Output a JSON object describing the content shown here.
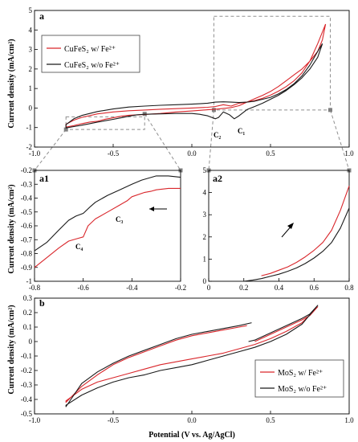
{
  "colors": {
    "with_fe": "#d9262b",
    "without_fe": "#1a1a1a",
    "guide": "#8f8f8f",
    "marker": "#808080"
  },
  "chart_data": [
    {
      "id": "a",
      "type": "line",
      "title": "a",
      "xlabel": "",
      "ylabel": "Current density (mA/cm²)",
      "xlim": [
        -1.0,
        1.0
      ],
      "ylim": [
        -2,
        5
      ],
      "xticks": [
        "-1.0",
        "-0.5",
        "0.0",
        "0.5",
        "1.0"
      ],
      "yticks": [
        "-2",
        "-1",
        "0",
        "1",
        "2",
        "3",
        "4",
        "5"
      ],
      "legend": {
        "position": "top-left"
      },
      "annotations": [
        "C₂",
        "C₁"
      ],
      "series": [
        {
          "name": "CuFeS₂ w/ Fe²⁺",
          "color": "#d9262b",
          "x": [
            0.85,
            0.83,
            0.8,
            0.75,
            0.7,
            0.65,
            0.6,
            0.55,
            0.5,
            0.45,
            0.4,
            0.35,
            0.3,
            0.25,
            0.2,
            0.15,
            0.1,
            0.05,
            0.0,
            -0.1,
            -0.2,
            -0.3,
            -0.35,
            -0.4,
            -0.45,
            -0.5,
            -0.55,
            -0.6,
            -0.65,
            -0.7,
            -0.75,
            -0.8,
            -0.8,
            -0.75,
            -0.7,
            -0.6,
            -0.5,
            -0.4,
            -0.3,
            -0.2,
            -0.1,
            0.0,
            0.05,
            0.1,
            0.15,
            0.2,
            0.25,
            0.3,
            0.35,
            0.4,
            0.45,
            0.5,
            0.55,
            0.6,
            0.65,
            0.7,
            0.75,
            0.8,
            0.83,
            0.85
          ],
          "y": [
            4.3,
            3.5,
            2.9,
            2.4,
            2.0,
            1.7,
            1.4,
            1.1,
            0.85,
            0.65,
            0.48,
            0.3,
            0.12,
            0.02,
            -0.02,
            -0.06,
            -0.09,
            -0.12,
            -0.15,
            -0.2,
            -0.28,
            -0.33,
            -0.35,
            -0.37,
            -0.42,
            -0.5,
            -0.57,
            -0.68,
            -0.72,
            -0.8,
            -0.9,
            -0.98,
            -0.83,
            -0.62,
            -0.48,
            -0.3,
            -0.2,
            -0.14,
            -0.1,
            -0.06,
            -0.03,
            0.0,
            0.02,
            0.04,
            0.08,
            0.17,
            0.1,
            0.25,
            0.3,
            0.38,
            0.5,
            0.66,
            0.86,
            1.1,
            1.4,
            1.8,
            2.4,
            3.3,
            3.9,
            4.3
          ]
        },
        {
          "name": "CuFeS₂ w/o Fe²⁺",
          "color": "#1a1a1a",
          "x": [
            0.83,
            0.8,
            0.75,
            0.7,
            0.65,
            0.6,
            0.55,
            0.5,
            0.45,
            0.4,
            0.35,
            0.3,
            0.27,
            0.24,
            0.2,
            0.17,
            0.15,
            0.1,
            0.05,
            0.0,
            -0.1,
            -0.2,
            -0.3,
            -0.35,
            -0.4,
            -0.45,
            -0.5,
            -0.55,
            -0.6,
            -0.65,
            -0.7,
            -0.75,
            -0.8,
            -0.8,
            -0.75,
            -0.7,
            -0.6,
            -0.5,
            -0.4,
            -0.3,
            -0.2,
            -0.1,
            0.0,
            0.05,
            0.1,
            0.15,
            0.2,
            0.25,
            0.3,
            0.35,
            0.4,
            0.45,
            0.5,
            0.55,
            0.6,
            0.65,
            0.7,
            0.75,
            0.8,
            0.83
          ],
          "y": [
            3.3,
            2.6,
            2.0,
            1.55,
            1.2,
            0.9,
            0.65,
            0.45,
            0.25,
            0.08,
            -0.08,
            -0.4,
            -0.55,
            -0.35,
            -0.2,
            -0.48,
            -0.55,
            -0.4,
            -0.32,
            -0.28,
            -0.28,
            -0.3,
            -0.32,
            -0.35,
            -0.42,
            -0.5,
            -0.58,
            -0.65,
            -0.72,
            -0.8,
            -0.88,
            -0.95,
            -1.02,
            -0.85,
            -0.55,
            -0.38,
            -0.18,
            -0.05,
            0.05,
            0.1,
            0.14,
            0.17,
            0.2,
            0.22,
            0.25,
            0.3,
            0.32,
            0.3,
            0.28,
            0.3,
            0.35,
            0.45,
            0.55,
            0.72,
            0.95,
            1.25,
            1.65,
            2.2,
            2.9,
            3.3
          ]
        }
      ]
    },
    {
      "id": "a1",
      "type": "line",
      "title": "a1",
      "xlabel": "",
      "ylabel": "Current density (mA/cm²)",
      "xlim": [
        -0.8,
        -0.2
      ],
      "ylim": [
        -1.0,
        -0.2
      ],
      "xticks": [
        "-0.8",
        "-0.6",
        "-0.4",
        "-0.2"
      ],
      "yticks": [
        "-1",
        "-0.9",
        "-0.8",
        "-0.7",
        "-0.6",
        "-0.5",
        "-0.4",
        "-0.3",
        "-0.2"
      ],
      "annotations": [
        "C₃",
        "C₄"
      ],
      "series": [
        {
          "name": "CuFeS₂ w/ Fe²⁺",
          "color": "#d9262b",
          "x": [
            -0.8,
            -0.75,
            -0.7,
            -0.66,
            -0.62,
            -0.6,
            -0.58,
            -0.55,
            -0.5,
            -0.45,
            -0.42,
            -0.4,
            -0.35,
            -0.32,
            -0.3,
            -0.25,
            -0.2
          ],
          "y": [
            -0.9,
            -0.83,
            -0.76,
            -0.71,
            -0.69,
            -0.68,
            -0.6,
            -0.55,
            -0.5,
            -0.45,
            -0.42,
            -0.39,
            -0.36,
            -0.35,
            -0.34,
            -0.33,
            -0.33
          ]
        },
        {
          "name": "CuFeS₂ w/o Fe²⁺",
          "color": "#1a1a1a",
          "x": [
            -0.8,
            -0.75,
            -0.7,
            -0.66,
            -0.63,
            -0.6,
            -0.57,
            -0.55,
            -0.5,
            -0.45,
            -0.4,
            -0.36,
            -0.32,
            -0.3,
            -0.25,
            -0.2
          ],
          "y": [
            -0.78,
            -0.72,
            -0.63,
            -0.56,
            -0.53,
            -0.51,
            -0.46,
            -0.43,
            -0.38,
            -0.34,
            -0.3,
            -0.27,
            -0.25,
            -0.24,
            -0.24,
            -0.25
          ]
        }
      ]
    },
    {
      "id": "a2",
      "type": "line",
      "title": "a2",
      "xlabel": "",
      "ylabel": "",
      "xlim": [
        0,
        0.8
      ],
      "ylim": [
        0,
        5
      ],
      "xticks": [
        "0",
        "0.2",
        "0.4",
        "0.6",
        "0.8"
      ],
      "yticks": [
        "0",
        "1",
        "2",
        "3",
        "4",
        "5"
      ],
      "series": [
        {
          "name": "CuFeS₂ w/ Fe²⁺",
          "color": "#d9262b",
          "x": [
            0.3,
            0.35,
            0.4,
            0.45,
            0.5,
            0.55,
            0.6,
            0.65,
            0.7,
            0.75,
            0.8
          ],
          "y": [
            0.25,
            0.35,
            0.5,
            0.65,
            0.85,
            1.1,
            1.4,
            1.75,
            2.3,
            3.2,
            4.3
          ]
        },
        {
          "name": "CuFeS₂ w/o Fe²⁺",
          "color": "#1a1a1a",
          "x": [
            0.2,
            0.25,
            0.3,
            0.35,
            0.4,
            0.45,
            0.5,
            0.55,
            0.6,
            0.65,
            0.7,
            0.75,
            0.8
          ],
          "y": [
            0.0,
            0.05,
            0.12,
            0.22,
            0.32,
            0.45,
            0.6,
            0.8,
            1.05,
            1.35,
            1.75,
            2.4,
            3.3
          ]
        }
      ]
    },
    {
      "id": "b",
      "type": "line",
      "title": "b",
      "xlabel": "Potential (V vs. Ag/AgCl)",
      "ylabel": "Current density (mA/cm²)",
      "xlim": [
        -1.0,
        1.0
      ],
      "ylim": [
        -0.5,
        0.3
      ],
      "xticks": [
        "-1.0",
        "-0.5",
        "0.0",
        "0.5",
        "1.0"
      ],
      "yticks": [
        "-0.5",
        "-0.4",
        "-0.3",
        "-0.2",
        "-0.1",
        "0",
        "0.1",
        "0.2",
        "0.3"
      ],
      "legend": {
        "position": "bottom-right"
      },
      "series": [
        {
          "name": "MoS₂ w/ Fe²⁺",
          "color": "#d9262b",
          "x": [
            0.35,
            0.3,
            0.2,
            0.1,
            0.0,
            -0.1,
            -0.2,
            -0.3,
            -0.4,
            -0.5,
            -0.6,
            -0.7,
            -0.8,
            -0.8,
            -0.7,
            -0.6,
            -0.5,
            -0.4,
            -0.3,
            -0.2,
            -0.1,
            0.0,
            0.1,
            0.2,
            0.3,
            0.4,
            0.5,
            0.6,
            0.7,
            0.8,
            0.8,
            0.75,
            0.7,
            0.6,
            0.5,
            0.4
          ],
          "y": [
            0.11,
            0.1,
            0.08,
            0.06,
            0.04,
            0.01,
            -0.03,
            -0.07,
            -0.11,
            -0.16,
            -0.23,
            -0.31,
            -0.42,
            -0.41,
            -0.33,
            -0.28,
            -0.25,
            -0.22,
            -0.19,
            -0.16,
            -0.14,
            -0.12,
            -0.1,
            -0.08,
            -0.05,
            -0.02,
            0.02,
            0.07,
            0.13,
            0.24,
            0.24,
            0.18,
            0.15,
            0.1,
            0.05,
            0.0
          ]
        },
        {
          "name": "MoS₂ w/o Fe²⁺",
          "color": "#1a1a1a",
          "x": [
            0.38,
            0.3,
            0.2,
            0.1,
            0.0,
            -0.1,
            -0.2,
            -0.3,
            -0.4,
            -0.5,
            -0.6,
            -0.7,
            -0.8,
            -0.8,
            -0.7,
            -0.6,
            -0.5,
            -0.4,
            -0.3,
            -0.2,
            -0.1,
            0.0,
            0.1,
            0.2,
            0.3,
            0.4,
            0.5,
            0.6,
            0.7,
            0.8,
            0.8,
            0.75,
            0.7,
            0.6,
            0.5,
            0.4,
            0.36
          ],
          "y": [
            0.13,
            0.11,
            0.09,
            0.07,
            0.05,
            0.02,
            -0.02,
            -0.06,
            -0.1,
            -0.15,
            -0.21,
            -0.29,
            -0.45,
            -0.44,
            -0.37,
            -0.32,
            -0.28,
            -0.25,
            -0.23,
            -0.2,
            -0.18,
            -0.16,
            -0.13,
            -0.1,
            -0.07,
            -0.04,
            0.0,
            0.05,
            0.12,
            0.25,
            0.25,
            0.19,
            0.16,
            0.11,
            0.06,
            0.01,
            0.0
          ]
        }
      ]
    }
  ]
}
